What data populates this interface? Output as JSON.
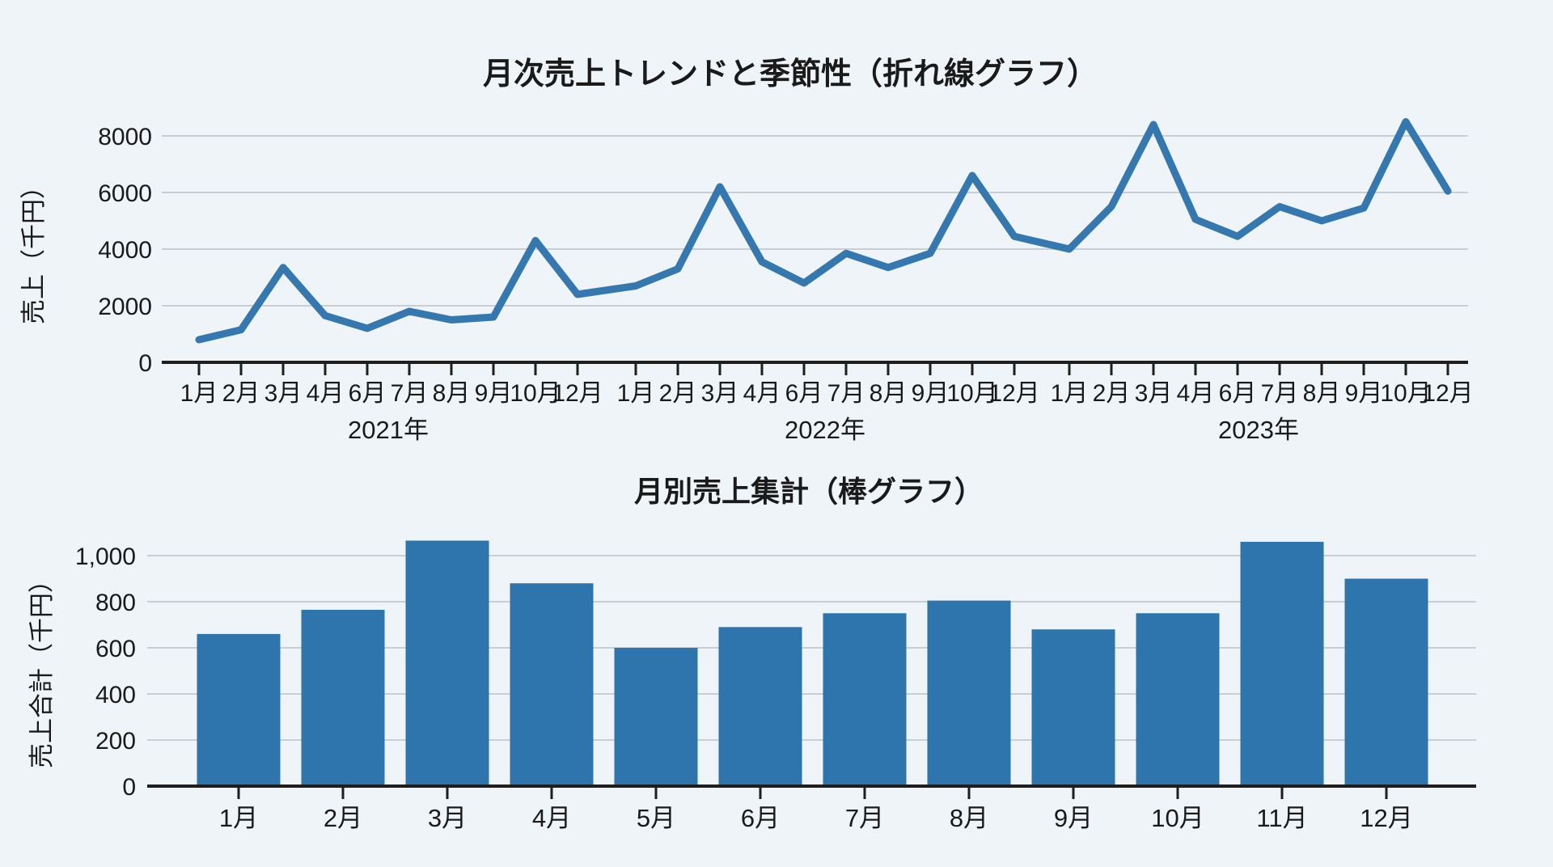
{
  "page": {
    "background_color": "#eef4f7",
    "accent_color": "#2e74ad",
    "axis_color": "#1e1e1e",
    "grid_color": "#c9ced4"
  },
  "chart_data": [
    {
      "type": "line",
      "title": "月次売上トレンドと季節性（折れ線グラフ）",
      "ylabel": "売上（千円）",
      "xlabel": "",
      "grid": true,
      "legend": "none",
      "ylim": [
        0,
        8800
      ],
      "yticks": [
        0,
        2000,
        4000,
        6000,
        8000
      ],
      "ytick_labels": [
        "0",
        "2000",
        "4000",
        "6000",
        "8000"
      ],
      "month_tick_labels": [
        "1月",
        "2月",
        "3月",
        "4月",
        "6月",
        "7月",
        "8月",
        "9月",
        "10月",
        "12月"
      ],
      "line_color": "#3578b0",
      "year_groups": [
        {
          "year_label": "2021年",
          "values": [
            800,
            1150,
            3350,
            1650,
            1200,
            1800,
            1500,
            1600,
            4300,
            2400
          ]
        },
        {
          "year_label": "2022年",
          "values": [
            2700,
            3300,
            6200,
            3550,
            2800,
            3850,
            3350,
            3850,
            6600,
            4450
          ]
        },
        {
          "year_label": "2023年",
          "values": [
            4000,
            5500,
            8400,
            5050,
            4450,
            5500,
            5000,
            5450,
            8500,
            6050
          ]
        }
      ]
    },
    {
      "type": "bar",
      "title": "月別売上集計（棒グラフ）",
      "ylabel": "売上合計（千円）",
      "xlabel": "",
      "grid": true,
      "legend": "none",
      "ylim": [
        0,
        1150
      ],
      "yticks": [
        0,
        200,
        400,
        600,
        800,
        1000
      ],
      "ytick_labels": [
        "0",
        "200",
        "400",
        "600",
        "800",
        "1,000"
      ],
      "bar_color": "#2e74ad",
      "categories": [
        "1月",
        "2月",
        "3月",
        "4月",
        "5月",
        "6月",
        "7月",
        "8月",
        "9月",
        "10月",
        "11月",
        "12月"
      ],
      "values": [
        660,
        765,
        1065,
        880,
        600,
        690,
        750,
        805,
        680,
        750,
        1060,
        900
      ]
    }
  ]
}
